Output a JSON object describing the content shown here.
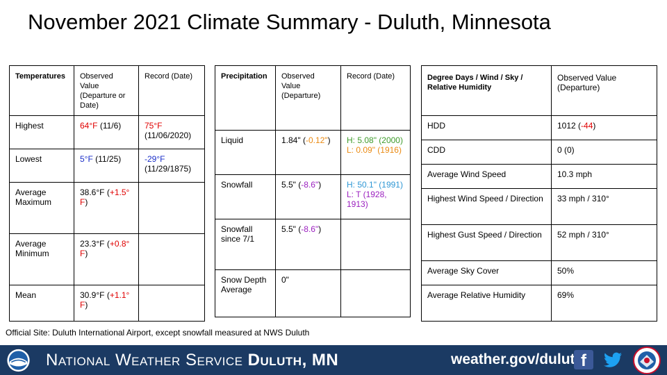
{
  "title": "November 2021 Climate Summary - Duluth, Minnesota",
  "temperatures": {
    "headers": [
      "Temperatures",
      "Observed Value (Departure or Date)",
      "Record (Date)"
    ],
    "rows": [
      {
        "label": "Highest",
        "value": "64°F",
        "value_extra": " (11/6)",
        "record": "75°F",
        "record_extra": "(11/06/2020)"
      },
      {
        "label": "Lowest",
        "value": "5°F",
        "value_extra": " (11/25)",
        "record": "-29°F",
        "record_extra": "(11/29/1875)"
      },
      {
        "label": "Average Maximum",
        "value": "38.6°F (",
        "value_dep": "+1.5° F",
        "value_end": ")"
      },
      {
        "label": "Average Minimum",
        "value": "23.3°F (",
        "value_dep": "+0.8° F",
        "value_end": ")"
      },
      {
        "label": "Mean",
        "value": "30.9°F (",
        "value_dep": "+1.1° F",
        "value_end": ")"
      }
    ]
  },
  "precipitation": {
    "headers": [
      "Precipitation",
      "Observed Value (Departure)",
      "Record (Date)"
    ],
    "rows": [
      {
        "label": "Liquid",
        "value": "1.84\" (",
        "value_dep": "-0.12\"",
        "value_end": ")",
        "record_high": "H: 5.08\" (2000)",
        "record_low": "L: 0.09\" (1916)"
      },
      {
        "label": "Snowfall",
        "value": "5.5\" (",
        "value_dep": "-8.6\"",
        "value_end": ")",
        "record_high": "H: 50.1\" (1991)",
        "record_low": "L: T (1928, 1913)"
      },
      {
        "label": "Snowfall since 7/1",
        "value": "5.5\" (",
        "value_dep": "-8.6\"",
        "value_end": ")"
      },
      {
        "label": "Snow Depth Average",
        "value": "0\""
      }
    ]
  },
  "degree_days": {
    "headers": [
      "Degree Days / Wind / Sky / Relative Humidity",
      "Observed Value (Departure)"
    ],
    "rows": [
      {
        "label": "HDD",
        "value": "1012 (",
        "value_dep": "-44",
        "value_end": ")"
      },
      {
        "label": "CDD",
        "value": "0 (0)"
      },
      {
        "label": "Average Wind Speed",
        "value": "10.3 mph"
      },
      {
        "label": "Highest Wind Speed / Direction",
        "value": "33 mph / 310°"
      },
      {
        "label": "Highest Gust Speed / Direction",
        "value": "52 mph / 310°"
      },
      {
        "label": "Average Sky Cover",
        "value": "50%"
      },
      {
        "label": "Average Relative Humidity",
        "value": "69%"
      }
    ]
  },
  "source_note": "Official Site: Duluth International Airport, except snowfall measured at NWS Duluth",
  "footer": {
    "org_name": "National Weather Service ",
    "office": "Duluth, MN",
    "url": "weather.gov/duluth",
    "facebook_icon": "facebook-icon",
    "twitter_icon": "twitter-icon",
    "colors": {
      "bar": "#1b3a63",
      "red": "#e00000",
      "blue": "#1a2ec8",
      "orange": "#ea8a12",
      "green": "#3e9b2b",
      "purple": "#9b1fbf",
      "light_blue": "#2e97d5"
    }
  }
}
